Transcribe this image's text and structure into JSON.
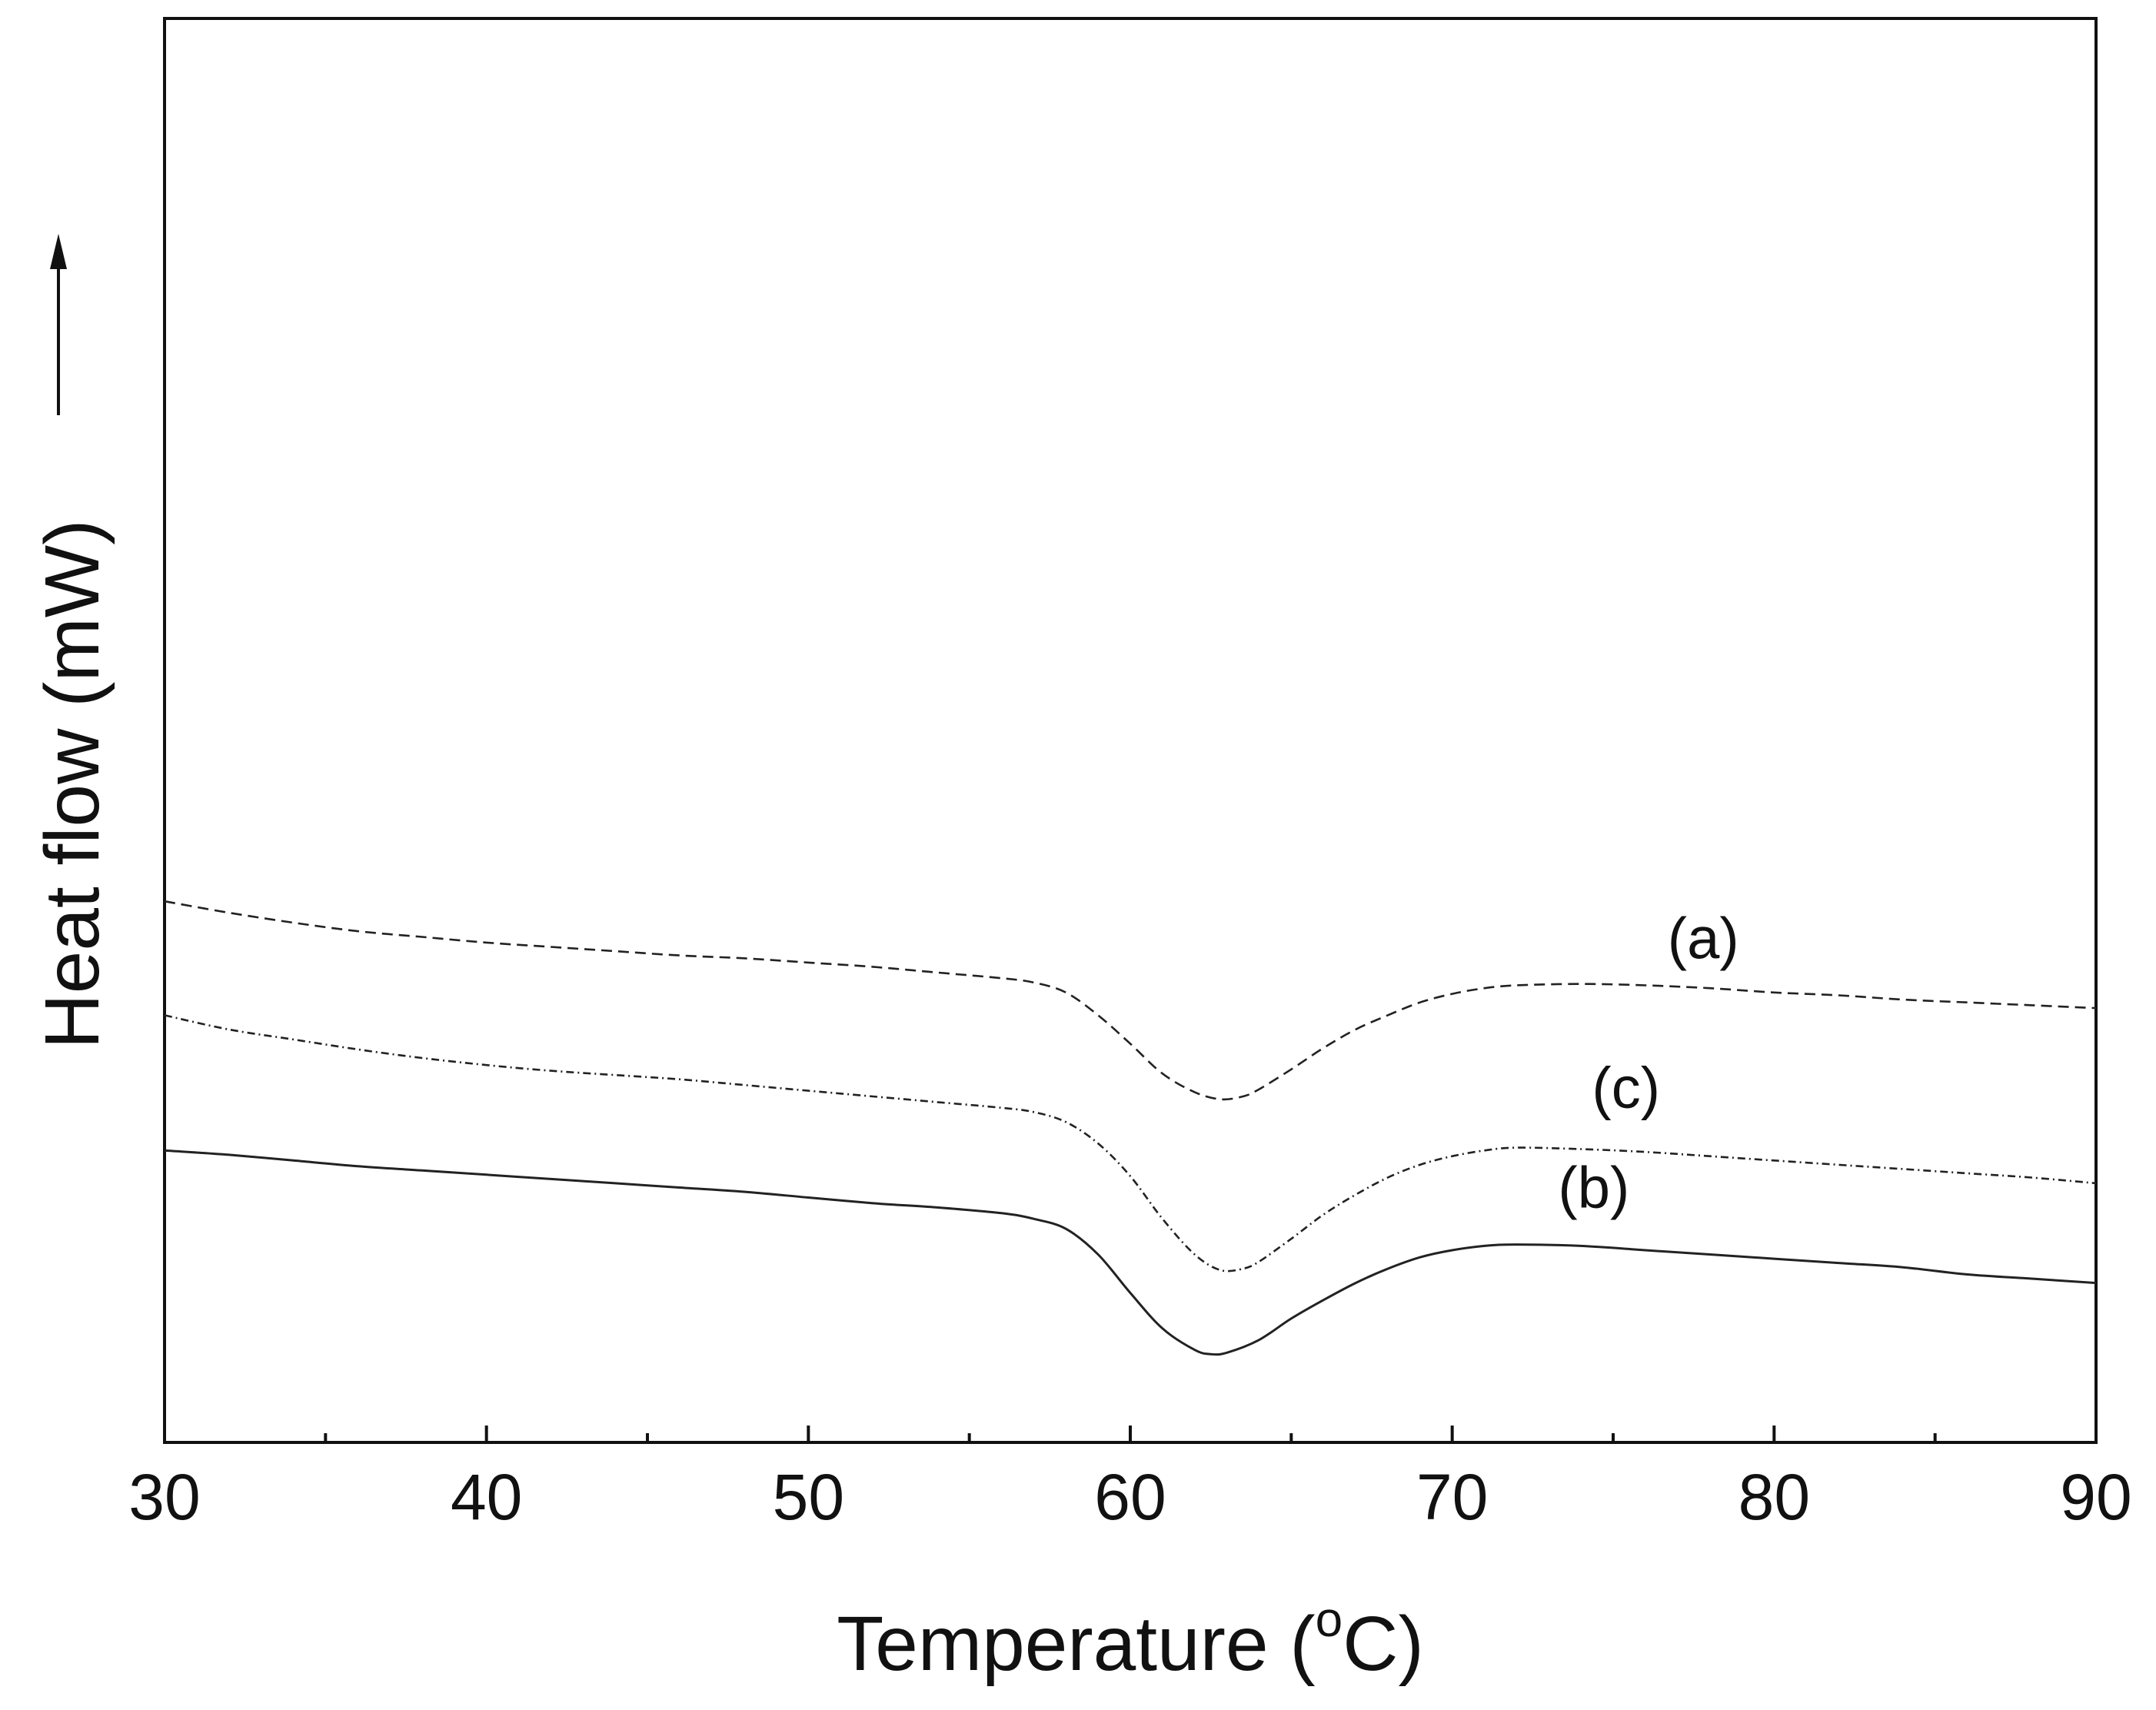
{
  "chart_data": {
    "type": "line",
    "xlabel": "Temperature (",
    "xlabel_sup": "o",
    "xlabel_end": "C)",
    "ylabel": "Heat flow (mW)",
    "xlim": [
      30,
      90
    ],
    "ylim": [
      0,
      100
    ],
    "x_ticks": [
      30,
      40,
      50,
      60,
      70,
      80,
      90
    ],
    "x_minor_ticks": [
      35,
      45,
      55,
      65,
      75,
      85
    ],
    "grid": false,
    "y_arrow": "up",
    "series": [
      {
        "name": "(a)",
        "style": "dashed",
        "label_at": [
          77.8,
          34.0
        ],
        "points": [
          [
            30,
            38.0
          ],
          [
            32,
            37.2
          ],
          [
            34,
            36.5
          ],
          [
            36,
            35.9
          ],
          [
            38,
            35.5
          ],
          [
            40,
            35.1
          ],
          [
            42,
            34.8
          ],
          [
            44,
            34.5
          ],
          [
            46,
            34.2
          ],
          [
            48,
            34.0
          ],
          [
            50,
            33.7
          ],
          [
            52,
            33.4
          ],
          [
            54,
            33.0
          ],
          [
            56,
            32.6
          ],
          [
            57,
            32.3
          ],
          [
            58,
            31.6
          ],
          [
            59,
            30.0
          ],
          [
            60,
            28.0
          ],
          [
            61,
            25.9
          ],
          [
            62,
            24.6
          ],
          [
            62.8,
            24.1
          ],
          [
            63.5,
            24.3
          ],
          [
            64,
            24.8
          ],
          [
            65,
            26.2
          ],
          [
            66,
            27.7
          ],
          [
            67,
            29.0
          ],
          [
            68,
            30.0
          ],
          [
            69,
            30.9
          ],
          [
            70,
            31.5
          ],
          [
            71,
            31.9
          ],
          [
            72,
            32.1
          ],
          [
            74,
            32.2
          ],
          [
            76,
            32.1
          ],
          [
            78,
            31.9
          ],
          [
            80,
            31.6
          ],
          [
            82,
            31.4
          ],
          [
            84,
            31.1
          ],
          [
            86,
            30.9
          ],
          [
            88,
            30.7
          ],
          [
            90,
            30.5
          ]
        ]
      },
      {
        "name": "(c)",
        "style": "dash-dot",
        "label_at": [
          75.4,
          23.5
        ],
        "points": [
          [
            30,
            30.0
          ],
          [
            32,
            29.0
          ],
          [
            34,
            28.3
          ],
          [
            36,
            27.6
          ],
          [
            38,
            27.0
          ],
          [
            40,
            26.5
          ],
          [
            42,
            26.1
          ],
          [
            44,
            25.8
          ],
          [
            46,
            25.5
          ],
          [
            48,
            25.1
          ],
          [
            50,
            24.7
          ],
          [
            52,
            24.3
          ],
          [
            54,
            23.9
          ],
          [
            56,
            23.5
          ],
          [
            57,
            23.2
          ],
          [
            58,
            22.5
          ],
          [
            59,
            21.0
          ],
          [
            60,
            18.7
          ],
          [
            61,
            15.7
          ],
          [
            62,
            13.2
          ],
          [
            62.8,
            12.1
          ],
          [
            63.5,
            12.2
          ],
          [
            64,
            12.7
          ],
          [
            65,
            14.3
          ],
          [
            66,
            16.0
          ],
          [
            67,
            17.4
          ],
          [
            68,
            18.6
          ],
          [
            69,
            19.5
          ],
          [
            70,
            20.1
          ],
          [
            71,
            20.5
          ],
          [
            72,
            20.7
          ],
          [
            74,
            20.6
          ],
          [
            76,
            20.4
          ],
          [
            78,
            20.1
          ],
          [
            80,
            19.8
          ],
          [
            82,
            19.5
          ],
          [
            84,
            19.2
          ],
          [
            86,
            18.9
          ],
          [
            88,
            18.6
          ],
          [
            90,
            18.2
          ]
        ]
      },
      {
        "name": "(b)",
        "style": "solid",
        "label_at": [
          74.4,
          16.5
        ],
        "points": [
          [
            30,
            20.5
          ],
          [
            32,
            20.2
          ],
          [
            34,
            19.8
          ],
          [
            36,
            19.4
          ],
          [
            38,
            19.1
          ],
          [
            40,
            18.8
          ],
          [
            42,
            18.5
          ],
          [
            44,
            18.2
          ],
          [
            46,
            17.9
          ],
          [
            48,
            17.6
          ],
          [
            50,
            17.2
          ],
          [
            52,
            16.8
          ],
          [
            54,
            16.5
          ],
          [
            56,
            16.1
          ],
          [
            57,
            15.7
          ],
          [
            58,
            15.0
          ],
          [
            59,
            13.2
          ],
          [
            60,
            10.5
          ],
          [
            61,
            8.0
          ],
          [
            62,
            6.5
          ],
          [
            62.5,
            6.2
          ],
          [
            63,
            6.3
          ],
          [
            64,
            7.2
          ],
          [
            65,
            8.7
          ],
          [
            66,
            10.0
          ],
          [
            67,
            11.2
          ],
          [
            68,
            12.2
          ],
          [
            69,
            13.0
          ],
          [
            70,
            13.5
          ],
          [
            71,
            13.8
          ],
          [
            72,
            13.9
          ],
          [
            74,
            13.8
          ],
          [
            76,
            13.5
          ],
          [
            78,
            13.2
          ],
          [
            80,
            12.9
          ],
          [
            82,
            12.6
          ],
          [
            84,
            12.3
          ],
          [
            86,
            11.8
          ],
          [
            88,
            11.5
          ],
          [
            90,
            11.2
          ]
        ]
      }
    ]
  }
}
